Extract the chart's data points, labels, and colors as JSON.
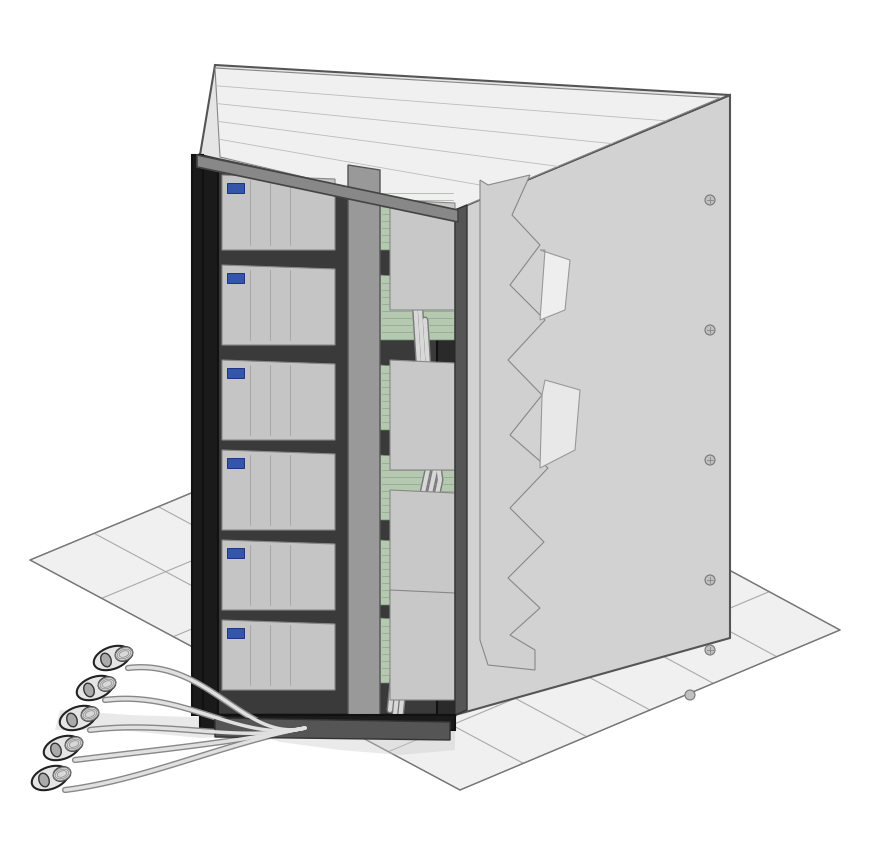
{
  "figure_width": 8.8,
  "figure_height": 8.64,
  "dpi": 100,
  "background_color": "#ffffff",
  "rack": {
    "front_face_color": "#c8c8c8",
    "right_face_color": "#d8d8d8",
    "top_face_color": "#e8e8e8",
    "frame_color": "#333333",
    "inner_dark": "#2a2a2a"
  },
  "floor": {
    "tile_fill": "#f5f5f5",
    "tile_line": "#888888",
    "shadow_color": "#cccccc"
  },
  "cables": {
    "fill": "#e8e8e8",
    "outline": "#555555"
  },
  "plugs": {
    "fill": "#e0e0e0",
    "outline": "#222222",
    "grip_color": "#aaaaaa"
  }
}
